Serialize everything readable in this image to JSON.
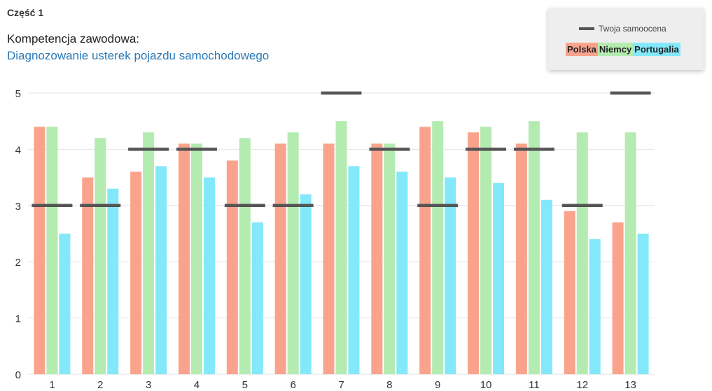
{
  "header": {
    "part_label": "Część 1",
    "competence_heading": "Kompetencja zawodowa:",
    "competence_name": "Diagnozowanie usterek pojazdu samochodowego"
  },
  "legend": {
    "self_assessment_label": "Twoja samoocena",
    "countries": [
      {
        "label": "Polska",
        "color": "#f9a38d"
      },
      {
        "label": "Niemcy",
        "color": "#b4ebb0"
      },
      {
        "label": "Portugalia",
        "color": "#83e8fa"
      }
    ],
    "self_assessment_color": "#555555"
  },
  "chart_data": {
    "type": "bar",
    "categories": [
      "1",
      "2",
      "3",
      "4",
      "5",
      "6",
      "7",
      "8",
      "9",
      "10",
      "11",
      "12",
      "13"
    ],
    "series": [
      {
        "name": "Polska",
        "color": "#f9a38d",
        "values": [
          4.4,
          3.5,
          3.6,
          4.1,
          3.8,
          4.1,
          4.1,
          4.1,
          4.4,
          4.3,
          4.1,
          2.9,
          2.7
        ]
      },
      {
        "name": "Niemcy",
        "color": "#b4ebb0",
        "values": [
          4.4,
          4.2,
          4.3,
          4.1,
          4.2,
          4.3,
          4.5,
          4.1,
          4.5,
          4.4,
          4.5,
          4.3,
          4.3
        ]
      },
      {
        "name": "Portugalia",
        "color": "#83e8fa",
        "values": [
          2.5,
          3.3,
          3.7,
          3.5,
          2.7,
          3.2,
          3.7,
          3.6,
          3.5,
          3.4,
          3.1,
          2.4,
          2.5
        ]
      }
    ],
    "self_assessment": {
      "name": "Twoja samoocena",
      "color": "#555555",
      "values": [
        3,
        3,
        4,
        4,
        3,
        3,
        5,
        4,
        3,
        4,
        4,
        3,
        5
      ]
    },
    "ylim": [
      0,
      5
    ],
    "yticks": [
      0,
      1,
      2,
      3,
      4,
      5
    ],
    "grid": true,
    "legend_placement": "top-right"
  }
}
